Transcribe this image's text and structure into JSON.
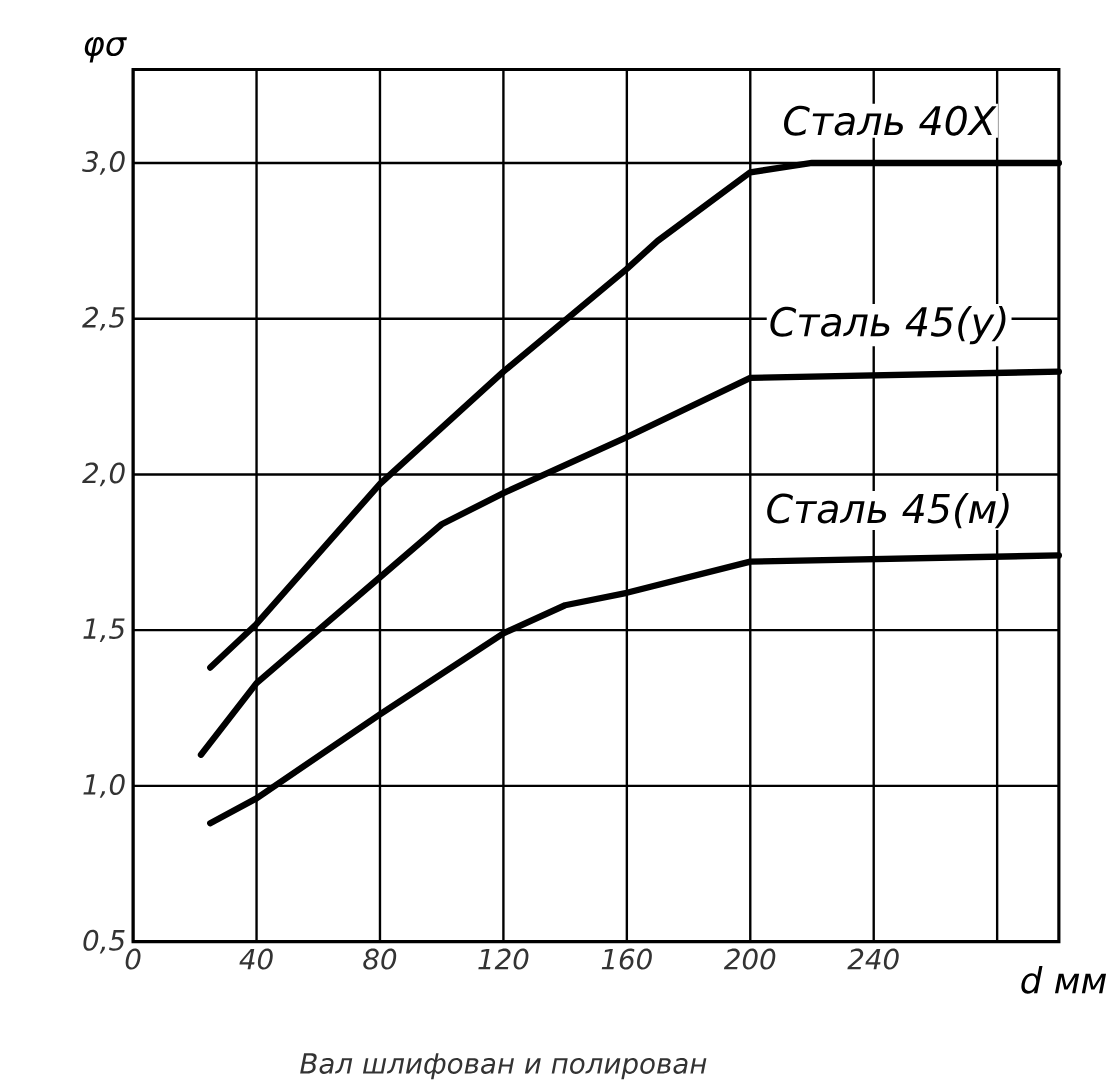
{
  "chart_data": {
    "type": "line",
    "ylabel": "φσ",
    "xlabel": "d мм",
    "annotations": [
      "Вал шлифован и полирован"
    ],
    "xlim": [
      0,
      300
    ],
    "ylim": [
      0.5,
      3.3
    ],
    "xticks": [
      0,
      40,
      80,
      120,
      160,
      200,
      240,
      {
        "value": 280,
        "label": null
      }
    ],
    "yticks": [
      {
        "value": 0.5,
        "label": "0,5"
      },
      {
        "value": 1.0,
        "label": "1,0"
      },
      {
        "value": 1.5,
        "label": "1,5"
      },
      {
        "value": 2.0,
        "label": "2,0"
      },
      {
        "value": 2.5,
        "label": "2,5"
      },
      {
        "value": 3.0,
        "label": "3,0"
      }
    ],
    "grid": true,
    "marker": "none",
    "line_style": "solid",
    "series": [
      {
        "name": "Сталь 40Х",
        "color": "#000000",
        "x": [
          25,
          40,
          80,
          120,
          160,
          170,
          200,
          220,
          300
        ],
        "values": [
          1.38,
          1.52,
          1.97,
          2.33,
          2.66,
          2.75,
          2.97,
          3.0,
          3.0
        ]
      },
      {
        "name": "Сталь 45(у)",
        "color": "#000000",
        "x": [
          22,
          40,
          80,
          100,
          120,
          160,
          200,
          300
        ],
        "values": [
          1.1,
          1.33,
          1.67,
          1.84,
          1.94,
          2.12,
          2.31,
          2.33
        ]
      },
      {
        "name": "Сталь 45(м)",
        "color": "#000000",
        "x": [
          25,
          40,
          80,
          120,
          140,
          160,
          200,
          300
        ],
        "values": [
          0.88,
          0.96,
          1.23,
          1.49,
          1.58,
          1.62,
          1.72,
          1.74
        ]
      }
    ]
  }
}
